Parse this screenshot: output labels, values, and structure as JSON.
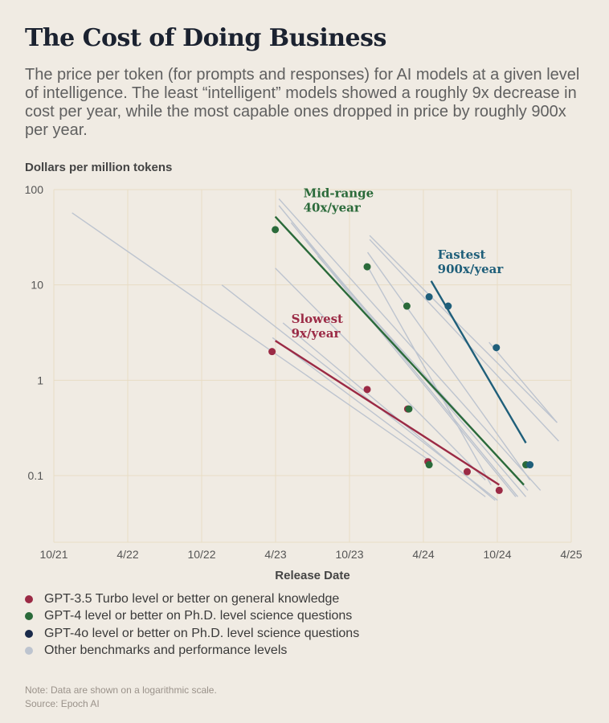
{
  "header": {
    "title": "The Cost of Doing Business",
    "subtitle": "The price per token (for prompts and responses) for AI models at a given level of intelligence. The least “intelligent” models showed a roughly 9x decrease in cost per year, while the most capable ones dropped in price by roughly 900x per year."
  },
  "footer": {
    "note": "Note: Data are shown on a logarithmic scale.",
    "source": "Source: Epoch AI"
  },
  "colors": {
    "background": "#f0ebe3",
    "grid": "#e8dcc4",
    "gpt35": "#9b2a45",
    "gpt4": "#2a6a3a",
    "gpt4o": "#1f5f7a",
    "gpt4o_legend": "#1a2a4a",
    "other": "#bdc4cf"
  },
  "chart_data": {
    "type": "scatter",
    "title": "The Cost of Doing Business",
    "ylabel": "Dollars per million tokens",
    "xlabel": "Release Date",
    "y_scale": "log",
    "ylim": [
      0.02,
      100
    ],
    "xlim": [
      "2021-10",
      "2025-04"
    ],
    "x_ticks": [
      "10/21",
      "4/22",
      "10/22",
      "4/23",
      "10/23",
      "4/24",
      "10/24",
      "4/25"
    ],
    "y_ticks": [
      "100",
      "10",
      "1",
      "0.1"
    ],
    "grid": true,
    "series": [
      {
        "key": "gpt35",
        "name": "GPT-3.5 Turbo level or better on general knowledge",
        "points": [
          {
            "x": "2023-03-24",
            "y": 2.0
          },
          {
            "x": "2023-11-14",
            "y": 0.8
          },
          {
            "x": "2024-02-22",
            "y": 0.5
          },
          {
            "x": "2024-04-12",
            "y": 0.14
          },
          {
            "x": "2024-07-18",
            "y": 0.11
          },
          {
            "x": "2024-10-05",
            "y": 0.07
          }
        ],
        "trend": {
          "label": "Slowest",
          "rate": "9x/year",
          "from": {
            "x": "2023-04-01",
            "y": 2.6
          },
          "to": {
            "x": "2024-10-05",
            "y": 0.08
          }
        }
      },
      {
        "key": "gpt4",
        "name": "GPT-4 level or better on Ph.D. level science questions",
        "points": [
          {
            "x": "2023-04-01",
            "y": 38
          },
          {
            "x": "2023-11-14",
            "y": 15.5
          },
          {
            "x": "2024-02-20",
            "y": 6.0
          },
          {
            "x": "2024-02-25",
            "y": 0.5
          },
          {
            "x": "2024-04-15",
            "y": 0.13
          },
          {
            "x": "2024-12-10",
            "y": 0.13
          }
        ],
        "trend": {
          "label": "Mid-range",
          "rate": "40x/year",
          "from": {
            "x": "2023-04-01",
            "y": 52
          },
          "to": {
            "x": "2024-12-05",
            "y": 0.08
          }
        }
      },
      {
        "key": "gpt4o",
        "name": "GPT-4o level or better on Ph.D. level science questions",
        "points": [
          {
            "x": "2024-04-15",
            "y": 7.5
          },
          {
            "x": "2024-06-01",
            "y": 6.0
          },
          {
            "x": "2024-09-28",
            "y": 2.2
          },
          {
            "x": "2024-12-20",
            "y": 0.13
          }
        ],
        "trend": {
          "label": "Fastest",
          "rate": "900x/year",
          "from": {
            "x": "2024-04-20",
            "y": 11
          },
          "to": {
            "x": "2024-12-10",
            "y": 0.22
          }
        }
      },
      {
        "key": "other",
        "name": "Other benchmarks and performance levels",
        "points": [],
        "lines": [
          {
            "from": {
              "x": "2021-11-15",
              "y": 57
            },
            "to": {
              "x": "2024-04-20",
              "y": 0.14
            }
          },
          {
            "from": {
              "x": "2022-11-20",
              "y": 10
            },
            "to": {
              "x": "2024-10-01",
              "y": 0.055
            }
          },
          {
            "from": {
              "x": "2023-04-01",
              "y": 15
            },
            "to": {
              "x": "2024-09-01",
              "y": 0.09
            }
          },
          {
            "from": {
              "x": "2023-04-10",
              "y": 80
            },
            "to": {
              "x": "2025-01-15",
              "y": 0.07
            }
          },
          {
            "from": {
              "x": "2023-04-10",
              "y": 68
            },
            "to": {
              "x": "2024-11-20",
              "y": 0.06
            }
          },
          {
            "from": {
              "x": "2023-05-10",
              "y": 45
            },
            "to": {
              "x": "2024-11-15",
              "y": 0.06
            }
          },
          {
            "from": {
              "x": "2023-06-15",
              "y": 30
            },
            "to": {
              "x": "2024-12-10",
              "y": 0.06
            }
          },
          {
            "from": {
              "x": "2023-07-15",
              "y": 20
            },
            "to": {
              "x": "2024-12-15",
              "y": 0.07
            }
          },
          {
            "from": {
              "x": "2023-11-20",
              "y": 33
            },
            "to": {
              "x": "2025-02-25",
              "y": 0.36
            }
          },
          {
            "from": {
              "x": "2023-11-20",
              "y": 30
            },
            "to": {
              "x": "2025-03-01",
              "y": 0.23
            }
          },
          {
            "from": {
              "x": "2023-11-15",
              "y": 22
            },
            "to": {
              "x": "2024-12-20",
              "y": 0.09
            }
          },
          {
            "from": {
              "x": "2023-11-10",
              "y": 17
            },
            "to": {
              "x": "2024-09-15",
              "y": 0.08
            }
          },
          {
            "from": {
              "x": "2023-04-20",
              "y": 4.0
            },
            "to": {
              "x": "2024-09-25",
              "y": 0.055
            }
          },
          {
            "from": {
              "x": "2023-03-25",
              "y": 2.8
            },
            "to": {
              "x": "2024-09-01",
              "y": 0.06
            }
          },
          {
            "from": {
              "x": "2024-09-10",
              "y": 2.5
            },
            "to": {
              "x": "2025-02-25",
              "y": 0.36
            }
          }
        ]
      }
    ],
    "legend_position": "bottom"
  }
}
